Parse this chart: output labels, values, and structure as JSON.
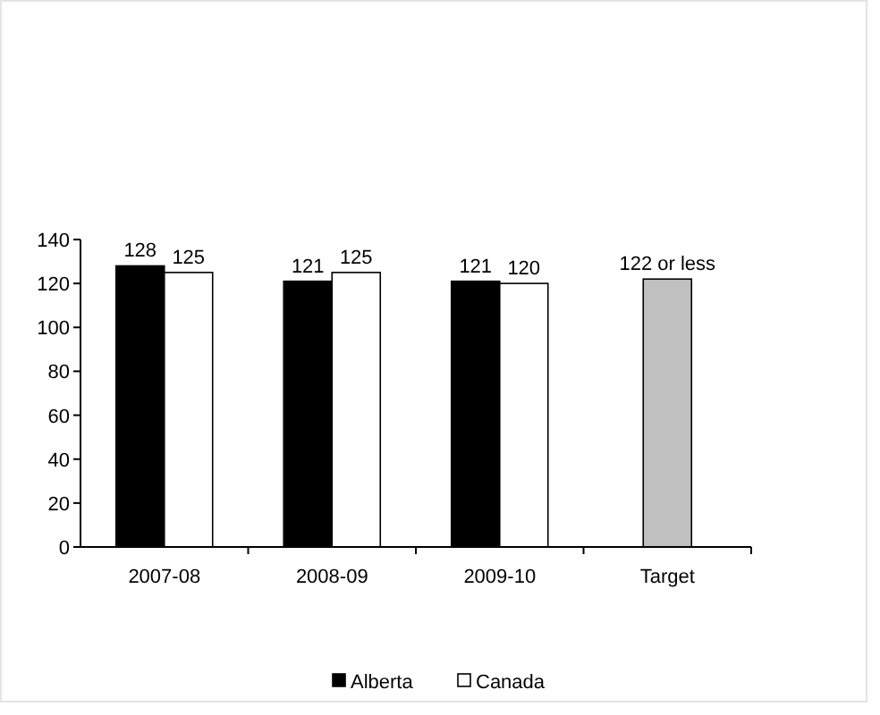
{
  "chart_data": {
    "type": "bar",
    "categories": [
      "2007-08",
      "2008-09",
      "2009-10",
      "Target"
    ],
    "series": [
      {
        "name": "Alberta",
        "color": "#000000",
        "values": [
          128,
          121,
          121,
          null
        ],
        "value_labels": [
          "128",
          "121",
          "121",
          null
        ]
      },
      {
        "name": "Canada",
        "color": "#ffffff",
        "values": [
          125,
          125,
          120,
          null
        ],
        "value_labels": [
          "125",
          "125",
          "120",
          null
        ]
      },
      {
        "color": "#c0c0c0",
        "values": [
          null,
          null,
          null,
          122
        ],
        "value_labels": [
          null,
          null,
          null,
          "122 or less"
        ]
      }
    ],
    "ylim": [
      0,
      140
    ],
    "yticks": [
      0,
      20,
      40,
      60,
      80,
      100,
      120,
      140
    ],
    "grid": false,
    "legend": "bottom"
  }
}
